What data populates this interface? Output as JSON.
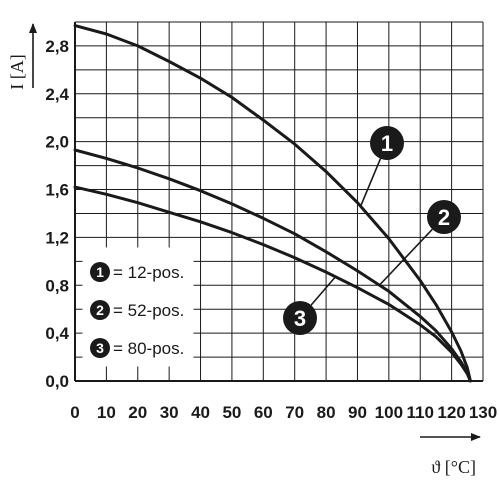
{
  "chart_data": {
    "type": "line",
    "xlabel": "ϑ [°C]",
    "ylabel": "I [A]",
    "xlim": [
      0,
      130
    ],
    "ylim": [
      0,
      3.0
    ],
    "grid": true,
    "x_ticks": [
      "0",
      "10",
      "20",
      "30",
      "40",
      "50",
      "60",
      "70",
      "80",
      "90",
      "100",
      "110",
      "120",
      "130"
    ],
    "y_ticks": [
      "0,0",
      "0,4",
      "0,8",
      "1,2",
      "1,6",
      "2,0",
      "2,4",
      "2,8"
    ],
    "legend": {
      "position": "bottom-left",
      "entries": [
        {
          "badge": "1",
          "label": "= 12-pos."
        },
        {
          "badge": "2",
          "label": "= 52-pos."
        },
        {
          "badge": "3",
          "label": "= 80-pos."
        }
      ]
    },
    "series": [
      {
        "marker": "1",
        "x": [
          0,
          10,
          20,
          30,
          40,
          50,
          60,
          70,
          80,
          90,
          100,
          110,
          115,
          120,
          123,
          125,
          126
        ],
        "y": [
          2.97,
          2.9,
          2.8,
          2.67,
          2.53,
          2.37,
          2.18,
          1.98,
          1.75,
          1.49,
          1.19,
          0.84,
          0.64,
          0.41,
          0.25,
          0.11,
          0.0
        ]
      },
      {
        "marker": "2",
        "x": [
          0,
          10,
          20,
          30,
          40,
          50,
          60,
          70,
          80,
          90,
          100,
          110,
          115,
          120,
          123,
          125,
          126
        ],
        "y": [
          1.93,
          1.86,
          1.78,
          1.69,
          1.59,
          1.48,
          1.36,
          1.23,
          1.08,
          0.92,
          0.75,
          0.54,
          0.42,
          0.27,
          0.16,
          0.07,
          0.0
        ]
      },
      {
        "marker": "3",
        "x": [
          0,
          10,
          20,
          30,
          40,
          50,
          60,
          70,
          80,
          90,
          100,
          110,
          115,
          120,
          123,
          125,
          126
        ],
        "y": [
          1.62,
          1.56,
          1.49,
          1.41,
          1.33,
          1.24,
          1.14,
          1.03,
          0.91,
          0.78,
          0.64,
          0.47,
          0.37,
          0.24,
          0.14,
          0.06,
          0.0
        ]
      }
    ]
  }
}
